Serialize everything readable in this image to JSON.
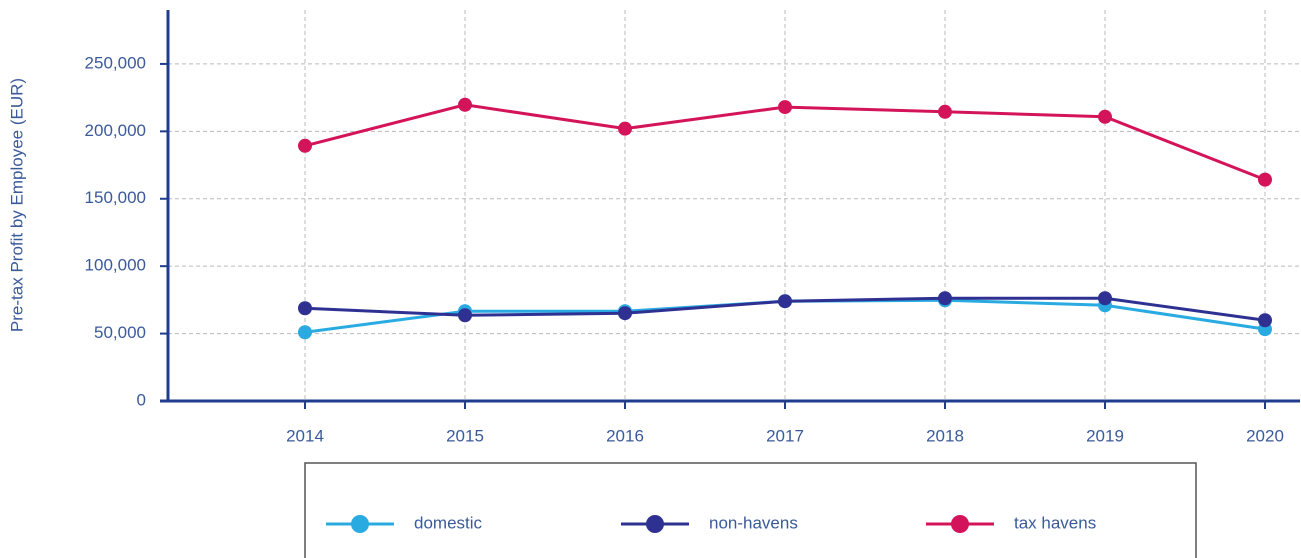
{
  "chart_data": {
    "type": "line",
    "y_label": "Pre-tax Profit by Employee (EUR)",
    "categories": [
      "2014",
      "2015",
      "2016",
      "2017",
      "2018",
      "2019",
      "2020"
    ],
    "series": [
      {
        "name": "domestic",
        "color": "#29abe2",
        "values": [
          51000,
          66600,
          66600,
          74000,
          74700,
          71000,
          53300
        ]
      },
      {
        "name": "non-havens",
        "color": "#2e3192",
        "values": [
          68800,
          63600,
          65100,
          74000,
          76200,
          76200,
          59900
        ]
      },
      {
        "name": "tax havens",
        "color": "#d4145a",
        "values": [
          189300,
          219700,
          202000,
          218000,
          214500,
          210800,
          164200
        ]
      }
    ],
    "ylim": [
      0,
      290000
    ],
    "yticks": [
      0,
      {
        "value": 50000,
        "label": "50,000"
      },
      {
        "value": 100000,
        "label": "100,000"
      },
      {
        "value": 150000,
        "label": "150,000"
      },
      {
        "value": 200000,
        "label": "200,000"
      },
      {
        "value": 250000,
        "label": "250,000"
      }
    ],
    "grid": true,
    "legend": "bottom"
  }
}
